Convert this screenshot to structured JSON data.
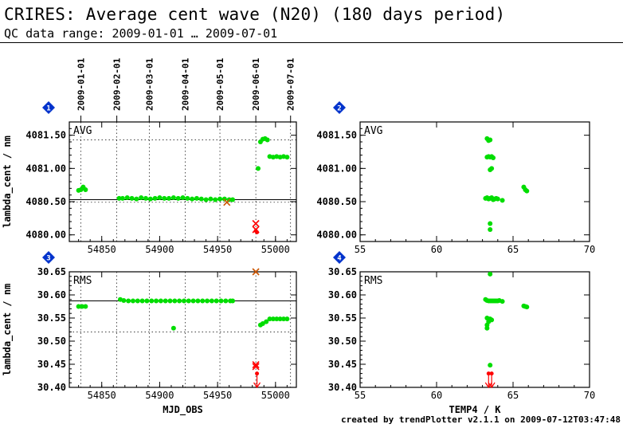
{
  "header": {
    "title": "CRIRES: Average cent wave (N20) (180 days period)",
    "subtitle": "QC data range: 2009-01-01 … 2009-07-01"
  },
  "footer": {
    "text": "created by trendPlotter v2.1.1 on 2009-07-12T03:47:48"
  },
  "colors": {
    "points": "#00dd00",
    "outlier": "#ff0000",
    "outlier_cross": "#cc5500",
    "badge": "#0033cc"
  },
  "chart_data": [
    {
      "id": "1",
      "type": "scatter",
      "panel_label": "AVG",
      "ylabel": "lambda_cent / nm",
      "xlabel": "",
      "xlim": [
        54822,
        55018
      ],
      "ylim": [
        4079.9,
        4081.7
      ],
      "yticks": [
        4080.0,
        4080.5,
        4081.0,
        4081.5
      ],
      "ytick_labels": [
        "4080.00",
        "4080.50",
        "4081.00",
        "4081.50"
      ],
      "xticks": [
        54850,
        54900,
        54950,
        55000
      ],
      "top_axis_dates": [
        "2009-01-01",
        "2009-02-01",
        "2009-03-01",
        "2009-04-01",
        "2009-05-01",
        "2009-06-01",
        "2009-07-01"
      ],
      "top_axis_mjd": [
        54832,
        54863,
        54891,
        54922,
        54952,
        54983,
        55013
      ],
      "ref_line": 4080.53,
      "dotted_lines": [
        4080.49,
        4081.43
      ],
      "points": [
        [
          54830,
          4080.67
        ],
        [
          54832,
          4080.68
        ],
        [
          54834,
          4080.72
        ],
        [
          54836,
          4080.68
        ],
        [
          54865,
          4080.55
        ],
        [
          54868,
          4080.55
        ],
        [
          54872,
          4080.56
        ],
        [
          54876,
          4080.55
        ],
        [
          54880,
          4080.54
        ],
        [
          54884,
          4080.56
        ],
        [
          54888,
          4080.55
        ],
        [
          54892,
          4080.54
        ],
        [
          54896,
          4080.55
        ],
        [
          54900,
          4080.56
        ],
        [
          54904,
          4080.55
        ],
        [
          54908,
          4080.55
        ],
        [
          54912,
          4080.56
        ],
        [
          54916,
          4080.55
        ],
        [
          54920,
          4080.56
        ],
        [
          54924,
          4080.55
        ],
        [
          54928,
          4080.54
        ],
        [
          54932,
          4080.55
        ],
        [
          54936,
          4080.54
        ],
        [
          54940,
          4080.53
        ],
        [
          54944,
          4080.54
        ],
        [
          54948,
          4080.53
        ],
        [
          54952,
          4080.54
        ],
        [
          54956,
          4080.54
        ],
        [
          54960,
          4080.53
        ],
        [
          54963,
          4080.53
        ],
        [
          54985,
          4081.0
        ],
        [
          54987,
          4081.4
        ],
        [
          54989,
          4081.44
        ],
        [
          54991,
          4081.45
        ],
        [
          54993,
          4081.43
        ],
        [
          54995,
          4081.18
        ],
        [
          54998,
          4081.17
        ],
        [
          55001,
          4081.18
        ],
        [
          55004,
          4081.17
        ],
        [
          55007,
          4081.18
        ],
        [
          55010,
          4081.17
        ]
      ],
      "crosses": [
        [
          54958,
          4080.49
        ],
        [
          54983,
          4080.17
        ],
        [
          54983,
          4080.08
        ]
      ],
      "red_points": [
        [
          54983,
          4080.06
        ],
        [
          54984,
          4080.04
        ]
      ],
      "arrows": []
    },
    {
      "id": "2",
      "type": "scatter",
      "panel_label": "AVG",
      "ylabel": "",
      "xlabel": "",
      "xlim": [
        55,
        70
      ],
      "ylim": [
        4079.9,
        4081.7
      ],
      "yticks": [
        4080.0,
        4080.5,
        4081.0,
        4081.5
      ],
      "ytick_labels": [
        "4080.00",
        "4080.50",
        "4081.00",
        "4081.50"
      ],
      "xticks": [
        55,
        60,
        65,
        70
      ],
      "points": [
        [
          63.3,
          4081.45
        ],
        [
          63.4,
          4081.42
        ],
        [
          63.5,
          4081.43
        ],
        [
          63.3,
          4081.17
        ],
        [
          63.4,
          4081.18
        ],
        [
          63.5,
          4081.17
        ],
        [
          63.6,
          4081.18
        ],
        [
          63.7,
          4081.16
        ],
        [
          63.5,
          4080.98
        ],
        [
          63.6,
          4081.0
        ],
        [
          63.2,
          4080.55
        ],
        [
          63.3,
          4080.56
        ],
        [
          63.4,
          4080.54
        ],
        [
          63.5,
          4080.55
        ],
        [
          63.6,
          4080.56
        ],
        [
          63.7,
          4080.53
        ],
        [
          63.8,
          4080.54
        ],
        [
          63.9,
          4080.55
        ],
        [
          64.0,
          4080.54
        ],
        [
          64.3,
          4080.52
        ],
        [
          63.5,
          4080.17
        ],
        [
          63.5,
          4080.08
        ],
        [
          65.7,
          4080.72
        ],
        [
          65.8,
          4080.68
        ],
        [
          65.9,
          4080.66
        ]
      ],
      "crosses": [],
      "red_points": [],
      "arrows": []
    },
    {
      "id": "3",
      "type": "scatter",
      "panel_label": "RMS",
      "ylabel": "lambda_cent / nm",
      "xlabel": "MJD_OBS",
      "xlim": [
        54822,
        55018
      ],
      "ylim": [
        30.4,
        30.65
      ],
      "yticks": [
        30.4,
        30.45,
        30.5,
        30.55,
        30.6,
        30.65
      ],
      "ytick_labels": [
        "30.40",
        "30.45",
        "30.50",
        "30.55",
        "30.60",
        "30.65"
      ],
      "xticks": [
        54850,
        54900,
        54950,
        55000
      ],
      "xtick_labels": [
        "54850",
        "54900",
        "54950",
        "55000"
      ],
      "top_axis_mjd": [
        54832,
        54863,
        54891,
        54922,
        54952,
        54983,
        55013
      ],
      "ref_line": 30.587,
      "dotted_lines": [
        30.52
      ],
      "points": [
        [
          54830,
          30.575
        ],
        [
          54833,
          30.575
        ],
        [
          54836,
          30.575
        ],
        [
          54866,
          30.59
        ],
        [
          54869,
          30.588
        ],
        [
          54873,
          30.587
        ],
        [
          54877,
          30.587
        ],
        [
          54881,
          30.587
        ],
        [
          54885,
          30.587
        ],
        [
          54889,
          30.587
        ],
        [
          54893,
          30.587
        ],
        [
          54897,
          30.587
        ],
        [
          54901,
          30.587
        ],
        [
          54905,
          30.587
        ],
        [
          54909,
          30.587
        ],
        [
          54913,
          30.587
        ],
        [
          54917,
          30.587
        ],
        [
          54921,
          30.587
        ],
        [
          54925,
          30.587
        ],
        [
          54929,
          30.587
        ],
        [
          54933,
          30.587
        ],
        [
          54937,
          30.587
        ],
        [
          54941,
          30.587
        ],
        [
          54945,
          30.587
        ],
        [
          54949,
          30.587
        ],
        [
          54953,
          30.587
        ],
        [
          54957,
          30.587
        ],
        [
          54961,
          30.587
        ],
        [
          54963,
          30.587
        ],
        [
          54912,
          30.528
        ],
        [
          54987,
          30.535
        ],
        [
          54989,
          30.538
        ],
        [
          54992,
          30.542
        ],
        [
          54995,
          30.548
        ],
        [
          54998,
          30.548
        ],
        [
          55001,
          30.548
        ],
        [
          55004,
          30.548
        ],
        [
          55007,
          30.548
        ],
        [
          55010,
          30.548
        ]
      ],
      "crosses": [
        [
          54983,
          30.65
        ],
        [
          54983,
          30.449
        ],
        [
          54983,
          30.445
        ]
      ],
      "red_points": [
        [
          54984,
          30.43
        ]
      ],
      "arrows": [
        54984
      ]
    },
    {
      "id": "4",
      "type": "scatter",
      "panel_label": "RMS",
      "ylabel": "",
      "xlabel": "TEMP4 / K",
      "xlim": [
        55,
        70
      ],
      "ylim": [
        30.4,
        30.65
      ],
      "yticks": [
        30.4,
        30.45,
        30.5,
        30.55,
        30.6,
        30.65
      ],
      "ytick_labels": [
        "30.40",
        "30.45",
        "30.50",
        "30.55",
        "30.60",
        "30.65"
      ],
      "xticks": [
        55,
        60,
        65,
        70
      ],
      "xtick_labels": [
        "55",
        "60",
        "65",
        "70"
      ],
      "points": [
        [
          63.5,
          30.645
        ],
        [
          63.2,
          30.59
        ],
        [
          63.3,
          30.588
        ],
        [
          63.4,
          30.587
        ],
        [
          63.5,
          30.587
        ],
        [
          63.6,
          30.587
        ],
        [
          63.7,
          30.587
        ],
        [
          63.8,
          30.587
        ],
        [
          63.9,
          30.587
        ],
        [
          64.0,
          30.587
        ],
        [
          64.1,
          30.588
        ],
        [
          64.3,
          30.586
        ],
        [
          63.3,
          30.55
        ],
        [
          63.4,
          30.548
        ],
        [
          63.5,
          30.548
        ],
        [
          63.6,
          30.546
        ],
        [
          63.4,
          30.542
        ],
        [
          63.3,
          30.535
        ],
        [
          63.3,
          30.528
        ],
        [
          63.5,
          30.448
        ],
        [
          65.7,
          30.576
        ],
        [
          65.8,
          30.575
        ],
        [
          65.9,
          30.574
        ]
      ],
      "crosses": [],
      "red_points": [
        [
          63.4,
          30.43
        ],
        [
          63.6,
          30.43
        ]
      ],
      "arrows": [
        63.4,
        63.6
      ]
    }
  ]
}
